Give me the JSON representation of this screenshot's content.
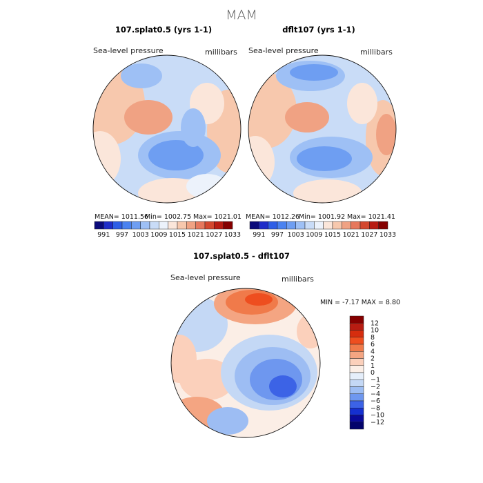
{
  "main_title": "MAM",
  "panels": [
    {
      "title": "107.splat0.5 (yrs 1-1)",
      "variable": "Sea-level pressure",
      "units": "millibars",
      "stats": {
        "mean": "MEAN= 1011.56",
        "min": "Min= 1002.75",
        "max": "Max= 1021.01"
      }
    },
    {
      "title": "dflt107 (yrs 1-1)",
      "variable": "Sea-level pressure",
      "units": "millibars",
      "stats": {
        "mean": "MEAN= 1012.26",
        "min": "Min= 1001.92",
        "max": "Max= 1021.41"
      }
    }
  ],
  "abs_colorbar": {
    "ticks": [
      "991",
      "997",
      "1003",
      "1009",
      "1015",
      "1021",
      "1027",
      "1033"
    ],
    "colors": [
      "#0a0a7a",
      "#1f2dc9",
      "#2e5ee6",
      "#4a82f0",
      "#6e9ef2",
      "#9ec0f5",
      "#c9dcf7",
      "#ecf2fb",
      "#fbe6da",
      "#f7c8ad",
      "#f0a283",
      "#e6785d",
      "#d3472e",
      "#b81c12",
      "#850000"
    ]
  },
  "diff_panel": {
    "title": "107.splat0.5 - dflt107",
    "variable": "Sea-level pressure",
    "units": "millibars",
    "min_max": "MIN =  -7.17 MAX =   8.80"
  },
  "diff_colorbar": {
    "labels": [
      "12",
      "10",
      "8",
      "6",
      "4",
      "2",
      "1",
      "0",
      "−1",
      "−2",
      "−4",
      "−6",
      "−8",
      "−10",
      "−12"
    ],
    "colors": [
      "#850000",
      "#b81c12",
      "#d62d0e",
      "#ee4e1f",
      "#f07a4a",
      "#f4a582",
      "#fbd0bb",
      "#fbeee6",
      "#e5eefa",
      "#c4d8f5",
      "#9dbdf3",
      "#6e97ef",
      "#3c63e6",
      "#1530d0",
      "#0a0a9a",
      "#03036b"
    ]
  },
  "map_colors": {
    "ocean_blue": "#c9dcf7",
    "light_red": "#f7c8ad",
    "neutral": "#fbe6da",
    "mid_blue": "#9ec0f5",
    "deep_blue": "#6e9ef2",
    "red": "#f0a283",
    "strong_red": "#e6785d",
    "strong_blue": "#4a82f0"
  }
}
